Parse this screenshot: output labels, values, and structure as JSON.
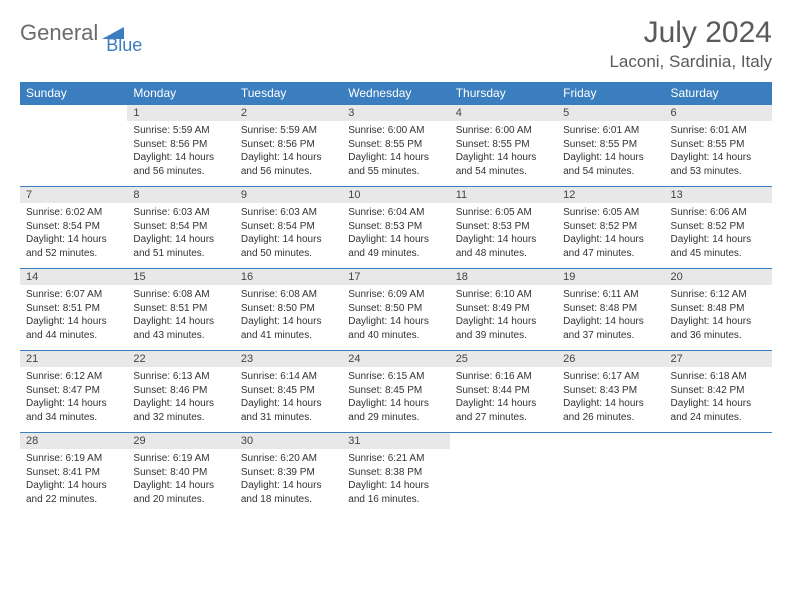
{
  "logo": {
    "text1": "General",
    "text2": "Blue"
  },
  "title": "July 2024",
  "location": "Laconi, Sardinia, Italy",
  "weekdays": [
    "Sunday",
    "Monday",
    "Tuesday",
    "Wednesday",
    "Thursday",
    "Friday",
    "Saturday"
  ],
  "colors": {
    "header_bg": "#3a7ebf",
    "header_text": "#ffffff",
    "day_band_bg": "#e8e8e8",
    "day_band_border": "#3a7ebf",
    "body_text": "#333333",
    "title_text": "#5a5a5a",
    "logo_gray": "#6b6b6b",
    "logo_blue": "#3a7ebf"
  },
  "weeks": [
    {
      "nums": [
        "",
        "1",
        "2",
        "3",
        "4",
        "5",
        "6"
      ],
      "details": [
        "",
        "Sunrise: 5:59 AM\nSunset: 8:56 PM\nDaylight: 14 hours and 56 minutes.",
        "Sunrise: 5:59 AM\nSunset: 8:56 PM\nDaylight: 14 hours and 56 minutes.",
        "Sunrise: 6:00 AM\nSunset: 8:55 PM\nDaylight: 14 hours and 55 minutes.",
        "Sunrise: 6:00 AM\nSunset: 8:55 PM\nDaylight: 14 hours and 54 minutes.",
        "Sunrise: 6:01 AM\nSunset: 8:55 PM\nDaylight: 14 hours and 54 minutes.",
        "Sunrise: 6:01 AM\nSunset: 8:55 PM\nDaylight: 14 hours and 53 minutes."
      ]
    },
    {
      "nums": [
        "7",
        "8",
        "9",
        "10",
        "11",
        "12",
        "13"
      ],
      "details": [
        "Sunrise: 6:02 AM\nSunset: 8:54 PM\nDaylight: 14 hours and 52 minutes.",
        "Sunrise: 6:03 AM\nSunset: 8:54 PM\nDaylight: 14 hours and 51 minutes.",
        "Sunrise: 6:03 AM\nSunset: 8:54 PM\nDaylight: 14 hours and 50 minutes.",
        "Sunrise: 6:04 AM\nSunset: 8:53 PM\nDaylight: 14 hours and 49 minutes.",
        "Sunrise: 6:05 AM\nSunset: 8:53 PM\nDaylight: 14 hours and 48 minutes.",
        "Sunrise: 6:05 AM\nSunset: 8:52 PM\nDaylight: 14 hours and 47 minutes.",
        "Sunrise: 6:06 AM\nSunset: 8:52 PM\nDaylight: 14 hours and 45 minutes."
      ]
    },
    {
      "nums": [
        "14",
        "15",
        "16",
        "17",
        "18",
        "19",
        "20"
      ],
      "details": [
        "Sunrise: 6:07 AM\nSunset: 8:51 PM\nDaylight: 14 hours and 44 minutes.",
        "Sunrise: 6:08 AM\nSunset: 8:51 PM\nDaylight: 14 hours and 43 minutes.",
        "Sunrise: 6:08 AM\nSunset: 8:50 PM\nDaylight: 14 hours and 41 minutes.",
        "Sunrise: 6:09 AM\nSunset: 8:50 PM\nDaylight: 14 hours and 40 minutes.",
        "Sunrise: 6:10 AM\nSunset: 8:49 PM\nDaylight: 14 hours and 39 minutes.",
        "Sunrise: 6:11 AM\nSunset: 8:48 PM\nDaylight: 14 hours and 37 minutes.",
        "Sunrise: 6:12 AM\nSunset: 8:48 PM\nDaylight: 14 hours and 36 minutes."
      ]
    },
    {
      "nums": [
        "21",
        "22",
        "23",
        "24",
        "25",
        "26",
        "27"
      ],
      "details": [
        "Sunrise: 6:12 AM\nSunset: 8:47 PM\nDaylight: 14 hours and 34 minutes.",
        "Sunrise: 6:13 AM\nSunset: 8:46 PM\nDaylight: 14 hours and 32 minutes.",
        "Sunrise: 6:14 AM\nSunset: 8:45 PM\nDaylight: 14 hours and 31 minutes.",
        "Sunrise: 6:15 AM\nSunset: 8:45 PM\nDaylight: 14 hours and 29 minutes.",
        "Sunrise: 6:16 AM\nSunset: 8:44 PM\nDaylight: 14 hours and 27 minutes.",
        "Sunrise: 6:17 AM\nSunset: 8:43 PM\nDaylight: 14 hours and 26 minutes.",
        "Sunrise: 6:18 AM\nSunset: 8:42 PM\nDaylight: 14 hours and 24 minutes."
      ]
    },
    {
      "nums": [
        "28",
        "29",
        "30",
        "31",
        "",
        "",
        ""
      ],
      "details": [
        "Sunrise: 6:19 AM\nSunset: 8:41 PM\nDaylight: 14 hours and 22 minutes.",
        "Sunrise: 6:19 AM\nSunset: 8:40 PM\nDaylight: 14 hours and 20 minutes.",
        "Sunrise: 6:20 AM\nSunset: 8:39 PM\nDaylight: 14 hours and 18 minutes.",
        "Sunrise: 6:21 AM\nSunset: 8:38 PM\nDaylight: 14 hours and 16 minutes.",
        "",
        "",
        ""
      ]
    }
  ]
}
